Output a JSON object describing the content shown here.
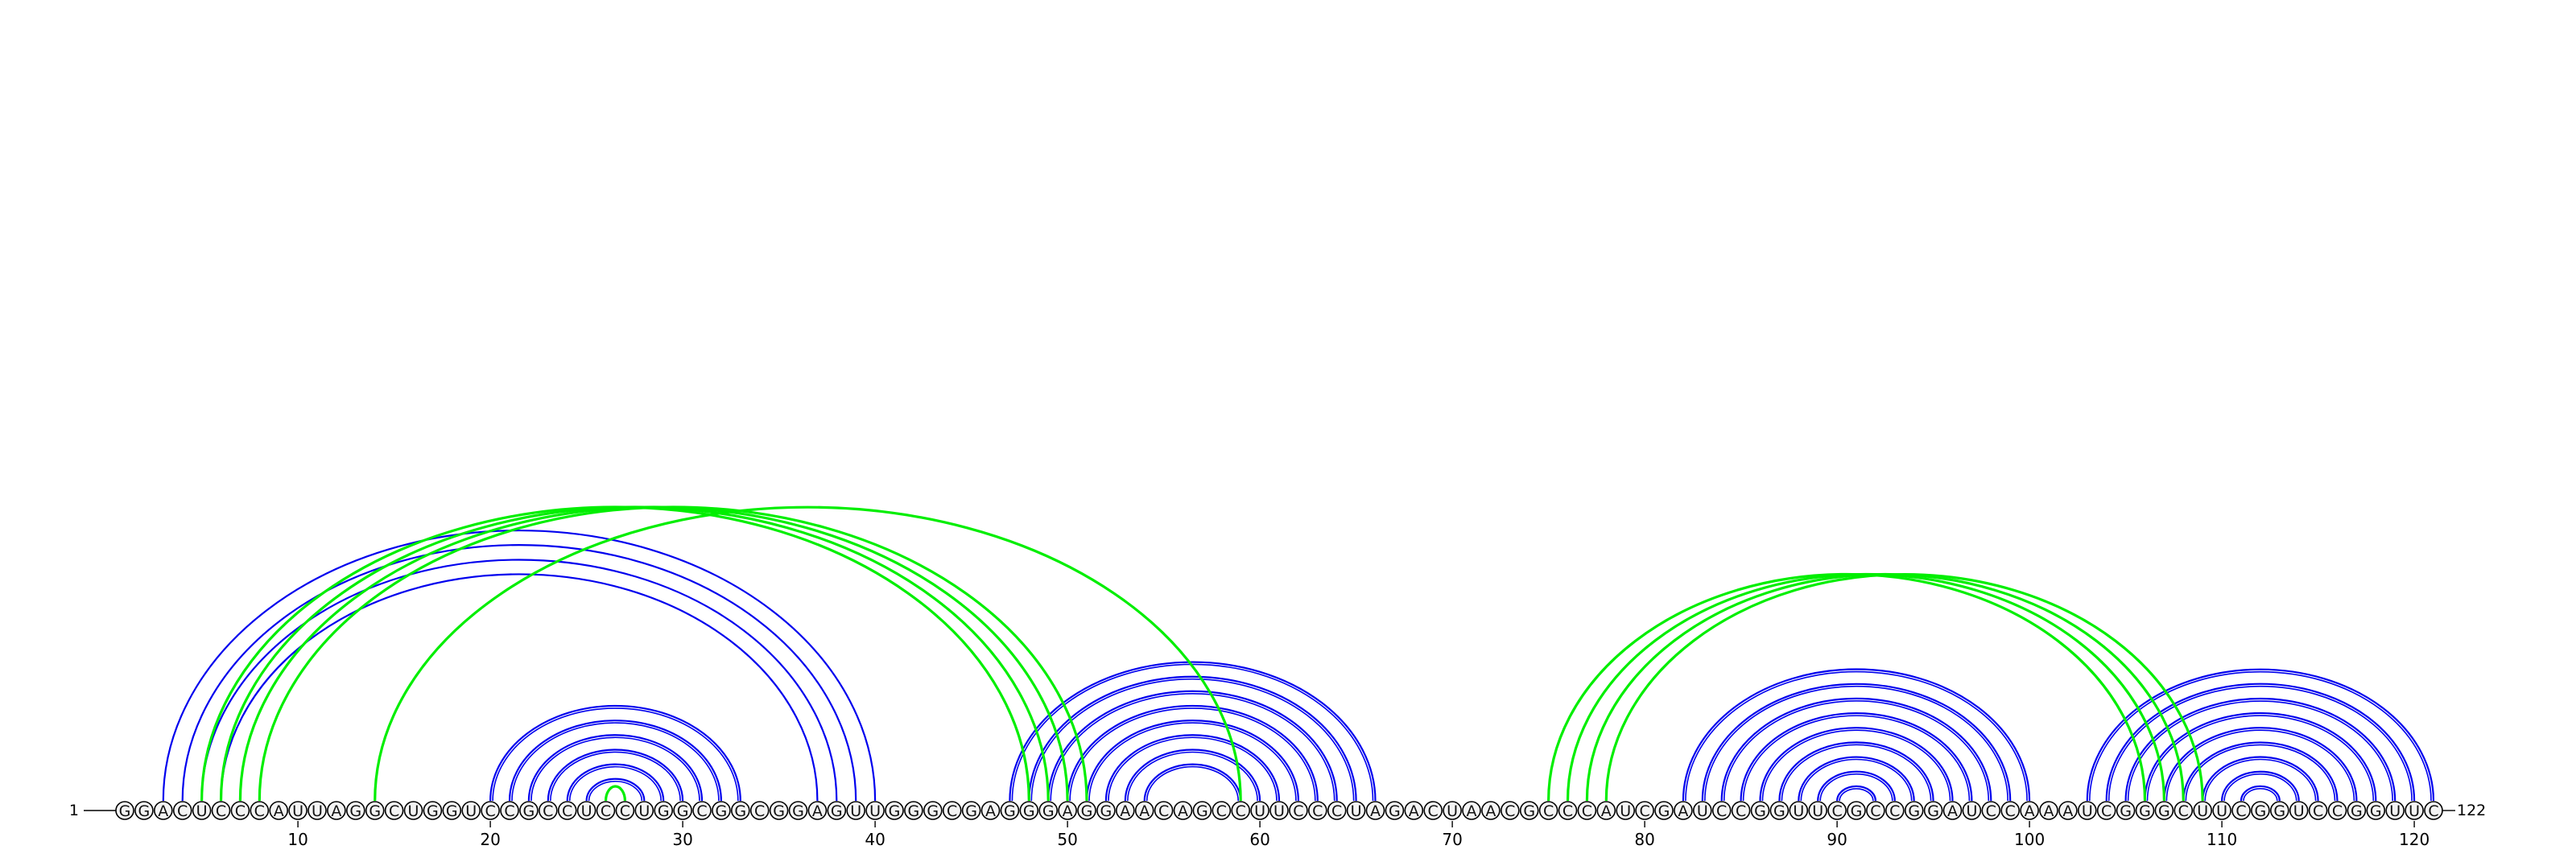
{
  "sequence": "GGACUCCCAUUAGGCUGGUCCGCCUCCUGGCGGCGGAGUUGGGCGAGGGAGGAACAGCCUUCCCUAGACUAACGCCCAUCGAUCCGGUUCGCCGGAUCCAAAUCGGGCUUCGGUCCGGUUC",
  "start_label": "1",
  "end_label": "122",
  "tick_labels": [
    "10",
    "20",
    "30",
    "40",
    "50",
    "60",
    "70",
    "80",
    "90",
    "100",
    "110",
    "120"
  ],
  "colors": {
    "blue": "#0000ee",
    "green": "#00ee00"
  },
  "arc_groups": [
    {
      "color": "blue",
      "pairs": [
        [
          3,
          40
        ],
        [
          4,
          39
        ],
        [
          5,
          38
        ],
        [
          6,
          37
        ]
      ]
    },
    {
      "color": "blue",
      "pairs": [
        [
          20,
          33
        ],
        [
          21,
          32
        ],
        [
          22,
          31
        ],
        [
          23,
          30
        ],
        [
          24,
          29
        ],
        [
          25,
          28
        ]
      ]
    },
    {
      "color": "green",
      "pairs": [
        [
          26,
          27
        ]
      ]
    },
    {
      "color": "blue",
      "pairs": [
        [
          47,
          66
        ],
        [
          48,
          65
        ],
        [
          49,
          64
        ],
        [
          50,
          63
        ],
        [
          51,
          62
        ],
        [
          52,
          61
        ],
        [
          53,
          60
        ],
        [
          54,
          59
        ]
      ]
    },
    {
      "color": "blue",
      "pairs": [
        [
          82,
          100
        ],
        [
          83,
          99
        ],
        [
          84,
          98
        ],
        [
          85,
          97
        ],
        [
          86,
          96
        ],
        [
          87,
          95
        ],
        [
          88,
          94
        ],
        [
          89,
          93
        ],
        [
          90,
          92
        ]
      ]
    },
    {
      "color": "blue",
      "pairs": [
        [
          103,
          121
        ],
        [
          104,
          120
        ],
        [
          105,
          119
        ],
        [
          106,
          118
        ],
        [
          107,
          117
        ],
        [
          108,
          116
        ],
        [
          109,
          115
        ],
        [
          110,
          114
        ],
        [
          111,
          113
        ]
      ]
    },
    {
      "color": "green",
      "pairs": [
        [
          5,
          48
        ],
        [
          6,
          49
        ],
        [
          7,
          50
        ],
        [
          8,
          51
        ]
      ]
    },
    {
      "color": "green",
      "pairs": [
        [
          14,
          59
        ]
      ]
    },
    {
      "color": "green",
      "pairs": [
        [
          75,
          106
        ],
        [
          76,
          107
        ],
        [
          77,
          108
        ],
        [
          78,
          109
        ]
      ]
    }
  ]
}
